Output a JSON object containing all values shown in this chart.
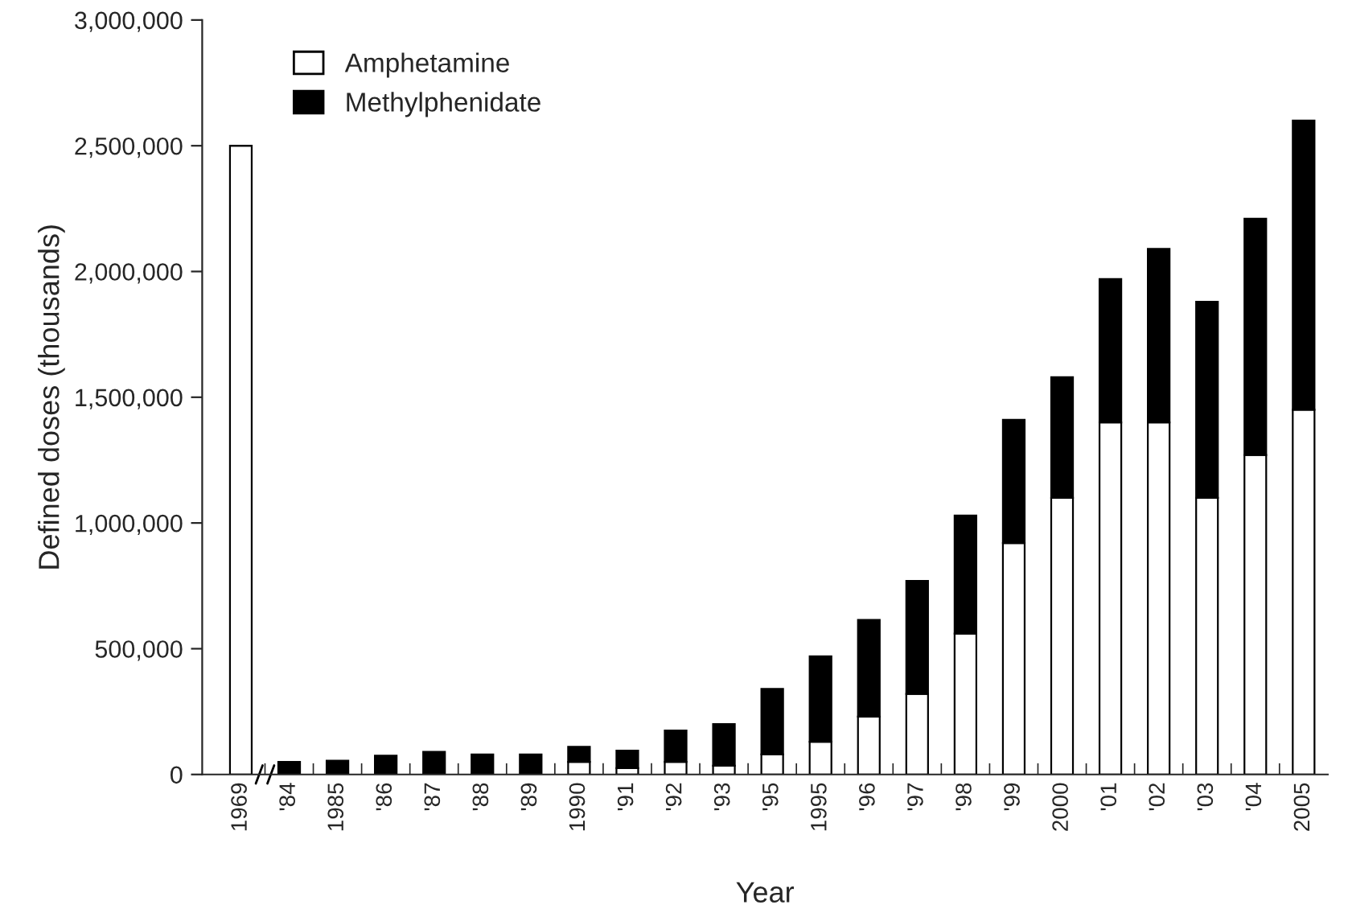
{
  "chart_data": {
    "type": "bar",
    "stacked": true,
    "xlabel": "Year",
    "ylabel": "Defined doses (thousands)",
    "categories": [
      "1969",
      "'84",
      "1985",
      "'86",
      "'87",
      "'88",
      "'89",
      "1990",
      "'91",
      "'92",
      "'93",
      "'95",
      "1995",
      "'96",
      "'97",
      "'98",
      "'99",
      "2000",
      "'01",
      "'02",
      "'03",
      "'04",
      "2005"
    ],
    "series": [
      {
        "name": "Amphetamine",
        "color": "#ffffff",
        "values": [
          2500000,
          0,
          0,
          0,
          0,
          0,
          0,
          50000,
          25000,
          50000,
          35000,
          80000,
          130000,
          230000,
          320000,
          560000,
          920000,
          1100000,
          1400000,
          1400000,
          1100000,
          1270000,
          1450000
        ]
      },
      {
        "name": "Methylphenidate",
        "color": "#000000",
        "values": [
          0,
          50000,
          55000,
          75000,
          90000,
          80000,
          80000,
          60000,
          70000,
          125000,
          165000,
          260000,
          340000,
          385000,
          450000,
          470000,
          490000,
          480000,
          570000,
          690000,
          780000,
          940000,
          1150000
        ]
      }
    ],
    "ylim": [
      0,
      3000000
    ],
    "yticks": [
      {
        "value": 0,
        "label": "0"
      },
      {
        "value": 500000,
        "label": "500,000"
      },
      {
        "value": 1000000,
        "label": "1,000,000"
      },
      {
        "value": 1500000,
        "label": "1,500,000"
      },
      {
        "value": 2000000,
        "label": "2,000,000"
      },
      {
        "value": 2500000,
        "label": "2,500,000"
      },
      {
        "value": 3000000,
        "label": "3,000,000"
      }
    ],
    "legend": "top left",
    "grid": false
  }
}
